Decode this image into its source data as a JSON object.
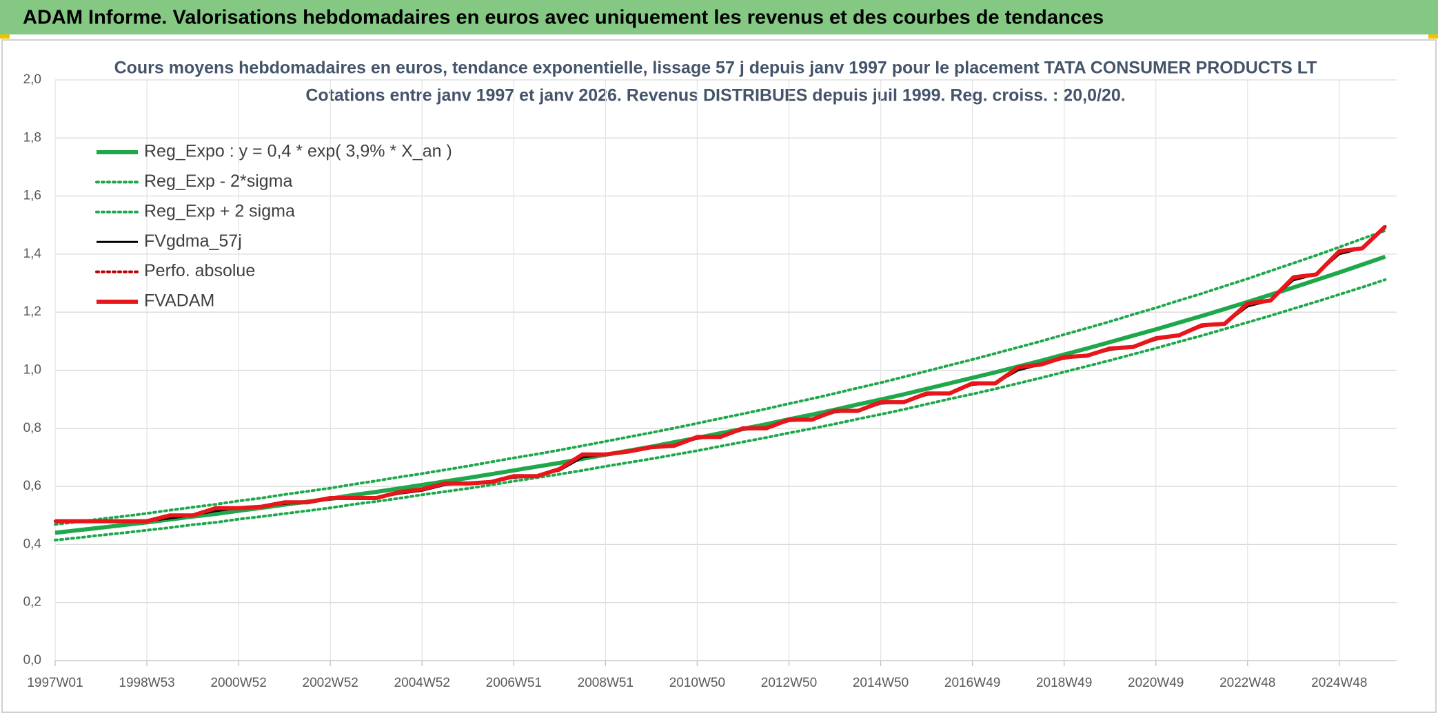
{
  "header": {
    "title": "ADAM Informe. Valorisations hebdomadaires en euros avec uniquement les revenus et des courbes de tendances"
  },
  "chart_data": {
    "type": "line",
    "title": "Cours moyens hebdomadaires en euros, tendance exponentielle, lissage 57 j depuis janv 1997 pour le placement TATA CONSUMER PRODUCTS LT",
    "subtitle": "Cotations entre janv 1997 et janv 2026. Revenus DISTRIBUES depuis juil 1999. Reg. croiss. : 20,0/20.",
    "categories": [
      "1997W01",
      null,
      null,
      null,
      "1998W53",
      null,
      null,
      null,
      "2000W52",
      null,
      null,
      null,
      "2002W52",
      null,
      null,
      null,
      "2004W52",
      null,
      null,
      null,
      "2006W51",
      null,
      null,
      null,
      "2008W51",
      null,
      null,
      null,
      "2010W50",
      null,
      null,
      null,
      "2012W50",
      null,
      null,
      null,
      "2014W50",
      null,
      null,
      null,
      "2016W49",
      null,
      null,
      null,
      "2018W49",
      null,
      null,
      null,
      "2020W49",
      null,
      null,
      null,
      "2022W48",
      null,
      null,
      null,
      "2024W48",
      null,
      null
    ],
    "ylim": [
      0,
      2
    ],
    "yticks": [
      {
        "value": 0,
        "label": "0,0"
      },
      {
        "value": 0.2,
        "label": "0,2"
      },
      {
        "value": 0.4,
        "label": "0,4"
      },
      {
        "value": 0.6,
        "label": "0,6"
      },
      {
        "value": 0.8,
        "label": "0,8"
      },
      {
        "value": 1,
        "label": "1,0"
      },
      {
        "value": 1.2,
        "label": "1,2"
      },
      {
        "value": 1.4,
        "label": "1,4"
      },
      {
        "value": 1.6,
        "label": "1,6"
      },
      {
        "value": 1.8,
        "label": "1,8"
      },
      {
        "value": 2,
        "label": "2,0"
      }
    ],
    "grid": true,
    "legend": "top-left",
    "series": [
      {
        "name": "Reg_Expo : y = 0,4 * exp( 3,9% *  X_an )",
        "color": "#1ea84b",
        "line_style": "thick",
        "values": [
          0.44,
          0.449,
          0.458,
          0.467,
          0.476,
          0.486,
          0.496,
          0.505,
          0.516,
          0.526,
          0.537,
          0.547,
          0.558,
          0.57,
          0.581,
          0.593,
          0.605,
          0.617,
          0.629,
          0.642,
          0.655,
          0.668,
          0.681,
          0.695,
          0.709,
          0.723,
          0.737,
          0.752,
          0.767,
          0.783,
          0.798,
          0.814,
          0.831,
          0.847,
          0.864,
          0.882,
          0.899,
          0.917,
          0.936,
          0.955,
          0.974,
          0.993,
          1.013,
          1.033,
          1.054,
          1.075,
          1.097,
          1.119,
          1.141,
          1.164,
          1.187,
          1.211,
          1.235,
          1.26,
          1.285,
          1.311,
          1.337,
          1.364,
          1.391
        ]
      },
      {
        "name": "Reg_Exp - 2*sigma",
        "color": "#1ea84b",
        "line_style": "dotted",
        "values": [
          0.415,
          0.423,
          0.432,
          0.44,
          0.449,
          0.458,
          0.468,
          0.476,
          0.487,
          0.496,
          0.506,
          0.516,
          0.526,
          0.538,
          0.548,
          0.559,
          0.571,
          0.582,
          0.593,
          0.605,
          0.618,
          0.63,
          0.642,
          0.655,
          0.669,
          0.682,
          0.695,
          0.709,
          0.723,
          0.738,
          0.753,
          0.768,
          0.784,
          0.799,
          0.815,
          0.832,
          0.848,
          0.865,
          0.883,
          0.901,
          0.918,
          0.936,
          0.955,
          0.974,
          0.994,
          1.014,
          1.034,
          1.055,
          1.076,
          1.098,
          1.119,
          1.142,
          1.165,
          1.188,
          1.212,
          1.236,
          1.261,
          1.286,
          1.312
        ]
      },
      {
        "name": "Reg_Exp + 2 sigma",
        "color": "#1ea84b",
        "line_style": "dotted",
        "values": [
          0.469,
          0.478,
          0.488,
          0.497,
          0.507,
          0.518,
          0.528,
          0.538,
          0.55,
          0.56,
          0.572,
          0.583,
          0.594,
          0.607,
          0.619,
          0.632,
          0.644,
          0.657,
          0.67,
          0.684,
          0.698,
          0.711,
          0.725,
          0.74,
          0.755,
          0.77,
          0.785,
          0.801,
          0.817,
          0.834,
          0.85,
          0.867,
          0.885,
          0.902,
          0.92,
          0.939,
          0.957,
          0.977,
          0.997,
          1.017,
          1.037,
          1.058,
          1.079,
          1.1,
          1.123,
          1.145,
          1.168,
          1.192,
          1.215,
          1.24,
          1.264,
          1.29,
          1.315,
          1.342,
          1.369,
          1.396,
          1.424,
          1.453,
          1.481
        ]
      },
      {
        "name": "FVgdma_57j",
        "color": "#000000",
        "line_style": "thin",
        "values": [
          0.48,
          0.48,
          0.48,
          0.48,
          0.48,
          0.49,
          0.5,
          0.515,
          0.525,
          0.53,
          0.54,
          0.545,
          0.555,
          0.56,
          0.56,
          0.575,
          0.585,
          0.605,
          0.61,
          0.615,
          0.63,
          0.635,
          0.655,
          0.7,
          0.71,
          0.72,
          0.735,
          0.74,
          0.765,
          0.77,
          0.795,
          0.8,
          0.825,
          0.83,
          0.855,
          0.86,
          0.885,
          0.89,
          0.915,
          0.92,
          0.95,
          0.955,
          1.0,
          1.02,
          1.04,
          1.05,
          1.07,
          1.08,
          1.105,
          1.12,
          1.15,
          1.16,
          1.22,
          1.24,
          1.31,
          1.33,
          1.4,
          1.42,
          1.49
        ]
      },
      {
        "name": "Perfo. absolue",
        "color": "#c00000",
        "line_style": "dotted",
        "values": [
          0.48,
          0.48,
          0.48,
          0.48,
          0.48,
          0.5,
          0.5,
          0.525,
          0.525,
          0.53,
          0.545,
          0.545,
          0.56,
          0.56,
          0.56,
          0.58,
          0.59,
          0.61,
          0.61,
          0.615,
          0.635,
          0.635,
          0.66,
          0.71,
          0.71,
          0.72,
          0.735,
          0.74,
          0.77,
          0.77,
          0.8,
          0.8,
          0.83,
          0.83,
          0.86,
          0.86,
          0.89,
          0.89,
          0.92,
          0.92,
          0.955,
          0.955,
          1.01,
          1.02,
          1.045,
          1.05,
          1.075,
          1.08,
          1.11,
          1.12,
          1.155,
          1.16,
          1.23,
          1.24,
          1.32,
          1.33,
          1.41,
          1.42,
          1.495
        ]
      },
      {
        "name": "FVADAM",
        "color": "#e8161b",
        "line_style": "thick",
        "values": [
          0.48,
          0.48,
          0.48,
          0.48,
          0.48,
          0.5,
          0.5,
          0.525,
          0.525,
          0.53,
          0.545,
          0.545,
          0.56,
          0.56,
          0.56,
          0.58,
          0.59,
          0.61,
          0.61,
          0.615,
          0.635,
          0.635,
          0.66,
          0.71,
          0.71,
          0.72,
          0.735,
          0.74,
          0.77,
          0.77,
          0.8,
          0.8,
          0.83,
          0.83,
          0.86,
          0.86,
          0.89,
          0.89,
          0.92,
          0.92,
          0.955,
          0.955,
          1.01,
          1.02,
          1.045,
          1.05,
          1.075,
          1.08,
          1.11,
          1.12,
          1.155,
          1.16,
          1.23,
          1.24,
          1.32,
          1.33,
          1.41,
          1.42,
          1.495
        ]
      }
    ]
  }
}
